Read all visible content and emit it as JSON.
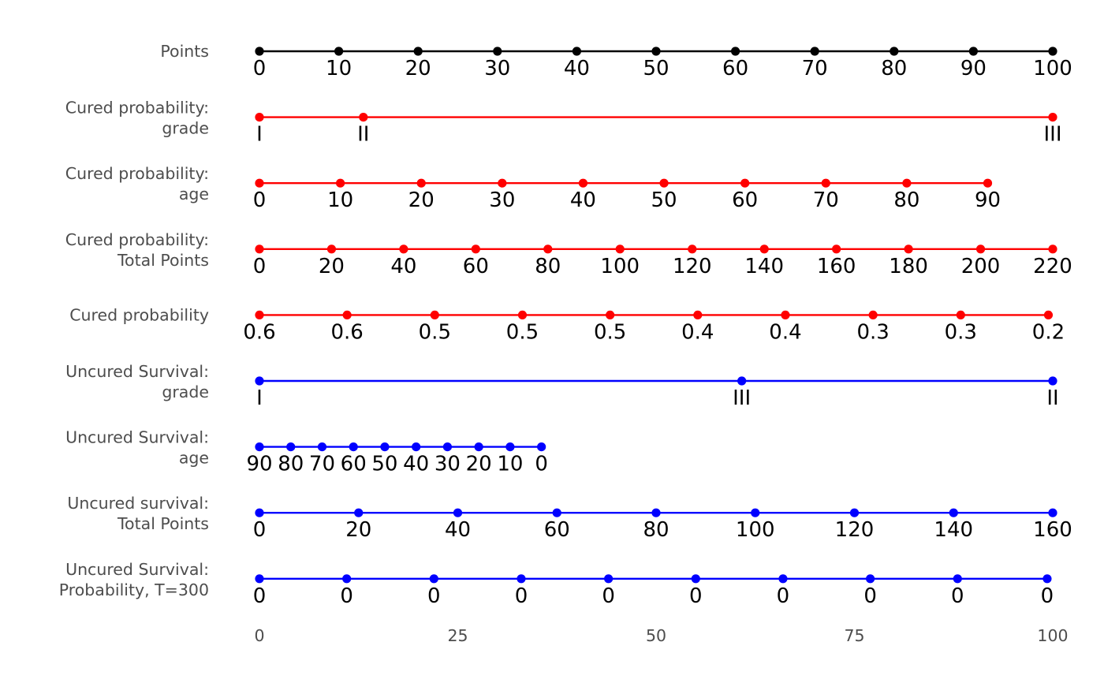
{
  "chart_data": {
    "type": "nomogram",
    "title": "",
    "xlabel": "",
    "ylabel": "",
    "grid": false,
    "legend": "none",
    "colors": {
      "points": "#000000",
      "cured": "#ff0000",
      "uncured": "#0000ff",
      "label": "#4d4d4d"
    },
    "x_axis": {
      "range": [
        0,
        100
      ],
      "ticks": [
        0,
        25,
        50,
        75,
        100
      ],
      "tick_labels": [
        "0",
        "25",
        "50",
        "75",
        "100"
      ]
    },
    "rows": [
      {
        "label": [
          "Points"
        ],
        "color": "#000000",
        "points": [
          {
            "x": 0,
            "label": "0"
          },
          {
            "x": 10,
            "label": "10"
          },
          {
            "x": 20,
            "label": "20"
          },
          {
            "x": 30,
            "label": "30"
          },
          {
            "x": 40,
            "label": "40"
          },
          {
            "x": 50,
            "label": "50"
          },
          {
            "x": 60,
            "label": "60"
          },
          {
            "x": 70,
            "label": "70"
          },
          {
            "x": 80,
            "label": "80"
          },
          {
            "x": 90,
            "label": "90"
          },
          {
            "x": 100,
            "label": "100"
          }
        ]
      },
      {
        "label": [
          "Cured probability:",
          "grade"
        ],
        "color": "#ff0000",
        "points": [
          {
            "x": 0,
            "label": "I"
          },
          {
            "x": 13.1,
            "label": "II"
          },
          {
            "x": 100,
            "label": "III"
          }
        ]
      },
      {
        "label": [
          "Cured probability:",
          "age"
        ],
        "color": "#ff0000",
        "points": [
          {
            "x": 0,
            "label": "0"
          },
          {
            "x": 10.2,
            "label": "10"
          },
          {
            "x": 20.4,
            "label": "20"
          },
          {
            "x": 30.6,
            "label": "30"
          },
          {
            "x": 40.8,
            "label": "40"
          },
          {
            "x": 51,
            "label": "50"
          },
          {
            "x": 61.2,
            "label": "60"
          },
          {
            "x": 71.4,
            "label": "70"
          },
          {
            "x": 81.6,
            "label": "80"
          },
          {
            "x": 91.8,
            "label": "90"
          }
        ]
      },
      {
        "label": [
          "Cured probability:",
          "Total Points"
        ],
        "color": "#ff0000",
        "points": [
          {
            "x": 0,
            "label": "0"
          },
          {
            "x": 9.09,
            "label": "20"
          },
          {
            "x": 18.18,
            "label": "40"
          },
          {
            "x": 27.27,
            "label": "60"
          },
          {
            "x": 36.36,
            "label": "80"
          },
          {
            "x": 45.45,
            "label": "100"
          },
          {
            "x": 54.55,
            "label": "120"
          },
          {
            "x": 63.64,
            "label": "140"
          },
          {
            "x": 72.73,
            "label": "160"
          },
          {
            "x": 81.82,
            "label": "180"
          },
          {
            "x": 90.91,
            "label": "200"
          },
          {
            "x": 100,
            "label": "220"
          }
        ]
      },
      {
        "label": [
          "Cured probability"
        ],
        "color": "#ff0000",
        "points": [
          {
            "x": 0,
            "label": "0.6"
          },
          {
            "x": 11.05,
            "label": "0.6"
          },
          {
            "x": 22.1,
            "label": "0.5"
          },
          {
            "x": 33.15,
            "label": "0.5"
          },
          {
            "x": 44.2,
            "label": "0.5"
          },
          {
            "x": 55.25,
            "label": "0.4"
          },
          {
            "x": 66.3,
            "label": "0.4"
          },
          {
            "x": 77.35,
            "label": "0.3"
          },
          {
            "x": 88.4,
            "label": "0.3"
          },
          {
            "x": 99.45,
            "label": "0.2"
          }
        ]
      },
      {
        "label": [
          "Uncured Survival:",
          "grade"
        ],
        "color": "#0000ff",
        "points": [
          {
            "x": 0,
            "label": "I"
          },
          {
            "x": 60.8,
            "label": "III"
          },
          {
            "x": 100,
            "label": "II"
          }
        ]
      },
      {
        "label": [
          "Uncured Survival:",
          "age"
        ],
        "color": "#0000ff",
        "points": [
          {
            "x": 0,
            "label": "90"
          },
          {
            "x": 3.95,
            "label": "80"
          },
          {
            "x": 7.9,
            "label": "70"
          },
          {
            "x": 11.85,
            "label": "60"
          },
          {
            "x": 15.8,
            "label": "50"
          },
          {
            "x": 19.75,
            "label": "40"
          },
          {
            "x": 23.7,
            "label": "30"
          },
          {
            "x": 27.65,
            "label": "20"
          },
          {
            "x": 31.6,
            "label": "10"
          },
          {
            "x": 35.55,
            "label": "0"
          }
        ]
      },
      {
        "label": [
          "Uncured survival:",
          "Total Points"
        ],
        "color": "#0000ff",
        "points": [
          {
            "x": 0,
            "label": "0"
          },
          {
            "x": 12.5,
            "label": "20"
          },
          {
            "x": 25,
            "label": "40"
          },
          {
            "x": 37.5,
            "label": "60"
          },
          {
            "x": 50,
            "label": "80"
          },
          {
            "x": 62.5,
            "label": "100"
          },
          {
            "x": 75,
            "label": "120"
          },
          {
            "x": 87.5,
            "label": "140"
          },
          {
            "x": 100,
            "label": "160"
          }
        ]
      },
      {
        "label": [
          "Uncured Survival:",
          "Probability, T=300"
        ],
        "color": "#0000ff",
        "points": [
          {
            "x": 0,
            "label": "0"
          },
          {
            "x": 11,
            "label": "0"
          },
          {
            "x": 22,
            "label": "0"
          },
          {
            "x": 33,
            "label": "0"
          },
          {
            "x": 44,
            "label": "0"
          },
          {
            "x": 55,
            "label": "0"
          },
          {
            "x": 66,
            "label": "0"
          },
          {
            "x": 77,
            "label": "0"
          },
          {
            "x": 88,
            "label": "0"
          },
          {
            "x": 99.3,
            "label": "0"
          }
        ]
      }
    ]
  }
}
